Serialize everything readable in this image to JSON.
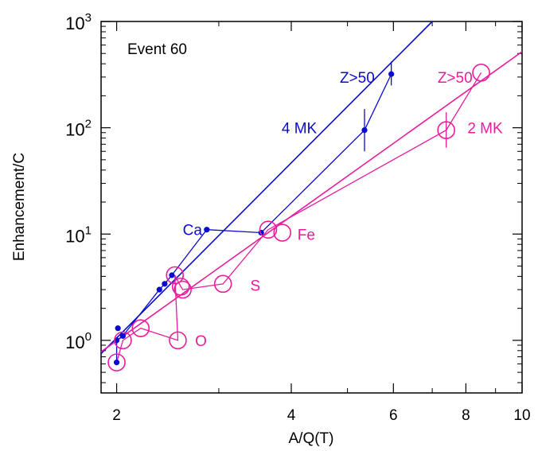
{
  "chart_data": {
    "type": "scatter",
    "title": "",
    "annotation": "Event 60",
    "xlabel": "A/Q(T)",
    "ylabel": "Enhancement/C",
    "x_scale": "log",
    "y_scale": "log",
    "xlim": [
      1.88,
      10.0
    ],
    "ylim": [
      0.32,
      1000
    ],
    "x_ticks": [
      {
        "value": 2,
        "label": "2"
      },
      {
        "value": 4,
        "label": "4"
      },
      {
        "value": 6,
        "label": "6"
      },
      {
        "value": 8,
        "label": "8"
      },
      {
        "value": 10,
        "label": "10"
      }
    ],
    "y_ticks": [
      {
        "value": 1,
        "base": "10",
        "exp": "0"
      },
      {
        "value": 10,
        "base": "10",
        "exp": "1"
      },
      {
        "value": 100,
        "base": "10",
        "exp": "2"
      },
      {
        "value": 1000,
        "base": "10",
        "exp": "3"
      }
    ],
    "grid": false,
    "colors": {
      "blue": "#0b0bd0",
      "pink": "#e81c9c",
      "axis": "#000000"
    },
    "series": [
      {
        "name": "4 MK",
        "color": "#0b0bd0",
        "marker": "dot",
        "points": [
          {
            "x": 2.0,
            "y": 0.62
          },
          {
            "x": 2.0,
            "y": 1.0
          },
          {
            "x": 2.01,
            "y": 1.3
          },
          {
            "x": 2.05,
            "y": 1.1
          },
          {
            "x": 2.37,
            "y": 3.0
          },
          {
            "x": 2.42,
            "y": 3.4
          },
          {
            "x": 2.49,
            "y": 4.1
          },
          {
            "x": 2.86,
            "y": 11.0
          },
          {
            "x": 3.55,
            "y": 10.3
          },
          {
            "x": 5.35,
            "y": 95,
            "err": [
              60,
              150
            ]
          },
          {
            "x": 5.95,
            "y": 320,
            "err": [
              250,
              420
            ]
          }
        ],
        "connect_order": [
          0,
          1,
          3,
          4,
          5,
          6,
          7,
          8,
          9,
          10
        ],
        "fit_line": {
          "x1": 1.88,
          "y1": 0.75,
          "x2": 7.0,
          "y2": 1000
        }
      },
      {
        "name": "2 MK",
        "color": "#e81c9c",
        "marker": "circle",
        "points": [
          {
            "x": 2.0,
            "y": 0.62
          },
          {
            "x": 2.05,
            "y": 1.0
          },
          {
            "x": 2.2,
            "y": 1.3
          },
          {
            "x": 2.52,
            "y": 4.1
          },
          {
            "x": 2.58,
            "y": 3.2
          },
          {
            "x": 2.6,
            "y": 3.0
          },
          {
            "x": 2.55,
            "y": 1.0
          },
          {
            "x": 3.05,
            "y": 3.4
          },
          {
            "x": 3.65,
            "y": 11.0
          },
          {
            "x": 3.86,
            "y": 10.3
          },
          {
            "x": 7.4,
            "y": 95,
            "err": [
              65,
              140
            ]
          },
          {
            "x": 8.5,
            "y": 330
          }
        ],
        "connect_order": [
          0,
          1,
          2,
          6,
          3,
          4,
          5,
          7,
          8,
          10,
          11
        ],
        "fit_line": {
          "x1": 1.88,
          "y1": 0.78,
          "x2": 10.0,
          "y2": 520
        }
      }
    ],
    "labels": [
      {
        "text": "Ca",
        "x": 2.6,
        "y": 11.0,
        "color": "#0b0bd0"
      },
      {
        "text": "Z>50",
        "x": 4.85,
        "y": 300,
        "color": "#0b0bd0"
      },
      {
        "text": "4 MK",
        "x": 3.85,
        "y": 100,
        "color": "#0b0bd0"
      },
      {
        "text": "Z>50",
        "x": 7.15,
        "y": 300,
        "color": "#e81c9c"
      },
      {
        "text": "2 MK",
        "x": 8.05,
        "y": 100,
        "color": "#e81c9c"
      },
      {
        "text": "Fe",
        "x": 4.1,
        "y": 10.0,
        "color": "#e81c9c"
      },
      {
        "text": "S",
        "x": 3.4,
        "y": 3.3,
        "color": "#e81c9c"
      },
      {
        "text": "O",
        "x": 2.73,
        "y": 1.0,
        "color": "#e81c9c"
      }
    ]
  }
}
